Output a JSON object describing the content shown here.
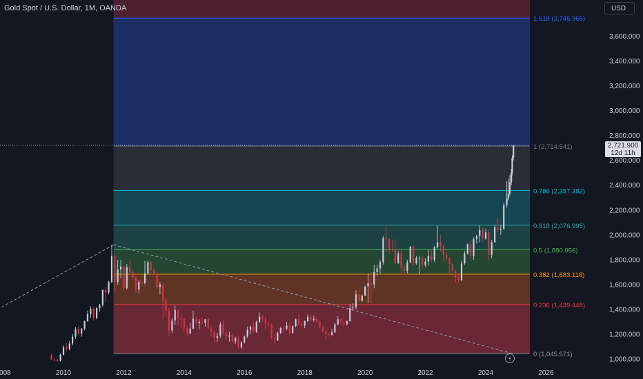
{
  "header": {
    "symbol_title": "Gold Spot / U.S. Dollar, 1M, OANDA",
    "currency_button": "USD"
  },
  "last_price": {
    "value": "2,721.900",
    "countdown": "12d 11h"
  },
  "colors": {
    "background": "#131722",
    "bull_candle": "#c8ccd6",
    "bear_candle": "#d0364a",
    "text": "#d1d4dc"
  },
  "chart_data": {
    "type": "candlestick",
    "symbol": "XAUUSD",
    "interval": "1M",
    "y_axis": {
      "ticks": [
        1000,
        1200,
        1400,
        1600,
        1800,
        2000,
        2200,
        2400,
        2600,
        2800,
        3000,
        3200,
        3400,
        3600
      ],
      "tick_labels": [
        "1,000.000",
        "1,200.000",
        "1,400.000",
        "1,600.000",
        "1,800.000",
        "2,000.000",
        "2,200.000",
        "2,400.000",
        "2,600.000",
        "2,800.000",
        "3,000.000",
        "3,200.000",
        "3,400.000",
        "3,600.000"
      ],
      "range": [
        990,
        3800
      ]
    },
    "x_axis": {
      "ticks": [
        2008,
        2010,
        2012,
        2014,
        2016,
        2018,
        2020,
        2022,
        2024,
        2026
      ],
      "tick_labels": [
        "2008",
        "2010",
        "2012",
        "2014",
        "2016",
        "2018",
        "2020",
        "2022",
        "2024",
        "2026"
      ],
      "range": [
        2007.8,
        2029.1
      ]
    },
    "fib_retracement": {
      "from": {
        "date": 2011.66,
        "price": 1045.571
      },
      "to": {
        "date": 2024.85,
        "price": 2714.541
      },
      "levels": [
        {
          "ratio": 0,
          "price": 1045.571,
          "label": "0 (1,045.571)",
          "color": "#9598a1",
          "fill": "#7a2a3a"
        },
        {
          "ratio": 0.236,
          "price": 1439.448,
          "label": "0.236 (1,439.448)",
          "color": "#f23645",
          "fill": "#6f3a26"
        },
        {
          "ratio": 0.382,
          "price": 1683.118,
          "label": "0.382 (1,683.118)",
          "color": "#ff9800",
          "fill": "#284f35"
        },
        {
          "ratio": 0.5,
          "price": 1880.056,
          "label": "0.5 (1,880.056)",
          "color": "#4caf50",
          "fill": "#1f4a4a"
        },
        {
          "ratio": 0.618,
          "price": 2076.995,
          "label": "0.618 (2,076.995)",
          "color": "#26a69a",
          "fill": "#154f5c"
        },
        {
          "ratio": 0.786,
          "price": 2357.382,
          "label": "0.786 (2,357.382)",
          "color": "#00bcd4",
          "fill": "#2d313c"
        },
        {
          "ratio": 1,
          "price": 2714.541,
          "label": "1 (2,714.541)",
          "color": "#787b86",
          "fill": "#1e3370"
        },
        {
          "ratio": 1.618,
          "price": 3745.965,
          "label": "1.618 (3,745.965)",
          "color": "#2962ff",
          "fill": "#5a2232"
        }
      ]
    },
    "trend_lines": [
      {
        "from": {
          "date": 2007.8,
          "price": 1398
        },
        "to": {
          "date": 2011.66,
          "price": 1920
        }
      },
      {
        "from": {
          "date": 2011.66,
          "price": 1920
        },
        "to": {
          "date": 2024.85,
          "price": 1045.571
        }
      }
    ],
    "ohlc_monthly_approx": [
      [
        2009.6,
        1030,
        1040,
        1000,
        995
      ],
      [
        2009.7,
        995,
        1005,
        985,
        990
      ],
      [
        2009.8,
        990,
        1000,
        980,
        985
      ],
      [
        2009.9,
        985,
        1045,
        980,
        1035
      ],
      [
        2010.0,
        1035,
        1110,
        1030,
        1095
      ],
      [
        2010.1,
        1095,
        1130,
        1060,
        1080
      ],
      [
        2010.2,
        1080,
        1145,
        1070,
        1125
      ],
      [
        2010.3,
        1125,
        1200,
        1110,
        1180
      ],
      [
        2010.4,
        1180,
        1255,
        1160,
        1240
      ],
      [
        2010.5,
        1240,
        1265,
        1190,
        1205
      ],
      [
        2010.6,
        1205,
        1250,
        1180,
        1245
      ],
      [
        2010.7,
        1245,
        1310,
        1230,
        1305
      ],
      [
        2010.8,
        1305,
        1390,
        1300,
        1360
      ],
      [
        2010.9,
        1360,
        1425,
        1330,
        1405
      ],
      [
        2011.0,
        1405,
        1420,
        1310,
        1330
      ],
      [
        2011.1,
        1330,
        1420,
        1320,
        1410
      ],
      [
        2011.2,
        1410,
        1445,
        1380,
        1435
      ],
      [
        2011.3,
        1435,
        1560,
        1420,
        1555
      ],
      [
        2011.4,
        1555,
        1580,
        1460,
        1535
      ],
      [
        2011.5,
        1535,
        1630,
        1520,
        1620
      ],
      [
        2011.6,
        1620,
        1920,
        1610,
        1830
      ],
      [
        2011.7,
        1830,
        1850,
        1550,
        1620
      ],
      [
        2011.8,
        1620,
        1800,
        1600,
        1720
      ],
      [
        2011.9,
        1720,
        1800,
        1650,
        1745
      ],
      [
        2012.0,
        1745,
        1750,
        1560,
        1570
      ],
      [
        2012.1,
        1570,
        1765,
        1560,
        1740
      ],
      [
        2012.2,
        1740,
        1790,
        1680,
        1700
      ],
      [
        2012.3,
        1700,
        1720,
        1640,
        1660
      ],
      [
        2012.4,
        1660,
        1670,
        1530,
        1560
      ],
      [
        2012.5,
        1560,
        1640,
        1530,
        1620
      ],
      [
        2012.6,
        1620,
        1640,
        1580,
        1610
      ],
      [
        2012.7,
        1610,
        1790,
        1600,
        1690
      ],
      [
        2012.8,
        1690,
        1795,
        1680,
        1780
      ],
      [
        2012.9,
        1780,
        1790,
        1690,
        1715
      ],
      [
        2013.0,
        1715,
        1740,
        1680,
        1690
      ],
      [
        2013.1,
        1690,
        1700,
        1560,
        1580
      ],
      [
        2013.2,
        1580,
        1620,
        1520,
        1600
      ],
      [
        2013.3,
        1600,
        1610,
        1320,
        1470
      ],
      [
        2013.4,
        1470,
        1490,
        1340,
        1390
      ],
      [
        2013.5,
        1390,
        1410,
        1180,
        1230
      ],
      [
        2013.6,
        1230,
        1330,
        1210,
        1310
      ],
      [
        2013.7,
        1310,
        1430,
        1275,
        1395
      ],
      [
        2013.8,
        1395,
        1400,
        1270,
        1325
      ],
      [
        2013.9,
        1325,
        1365,
        1250,
        1320
      ],
      [
        2014.0,
        1320,
        1330,
        1220,
        1250
      ],
      [
        2014.1,
        1250,
        1270,
        1180,
        1205
      ],
      [
        2014.2,
        1205,
        1290,
        1200,
        1245
      ],
      [
        2014.3,
        1245,
        1390,
        1240,
        1325
      ],
      [
        2014.4,
        1325,
        1340,
        1280,
        1290
      ],
      [
        2014.5,
        1290,
        1320,
        1240,
        1300
      ],
      [
        2014.6,
        1300,
        1330,
        1280,
        1290
      ],
      [
        2014.7,
        1290,
        1320,
        1260,
        1320
      ],
      [
        2014.8,
        1320,
        1325,
        1240,
        1250
      ],
      [
        2014.9,
        1250,
        1260,
        1180,
        1215
      ],
      [
        2015.0,
        1215,
        1230,
        1130,
        1170
      ],
      [
        2015.1,
        1170,
        1210,
        1140,
        1185
      ],
      [
        2015.2,
        1185,
        1300,
        1170,
        1280
      ],
      [
        2015.3,
        1280,
        1310,
        1190,
        1210
      ],
      [
        2015.4,
        1210,
        1230,
        1150,
        1180
      ],
      [
        2015.5,
        1180,
        1220,
        1140,
        1190
      ],
      [
        2015.6,
        1190,
        1205,
        1130,
        1140
      ],
      [
        2015.7,
        1140,
        1180,
        1120,
        1170
      ],
      [
        2015.8,
        1170,
        1190,
        1080,
        1095
      ],
      [
        2015.9,
        1095,
        1140,
        1080,
        1135
      ],
      [
        2016.0,
        1135,
        1190,
        1125,
        1180
      ],
      [
        2016.1,
        1180,
        1260,
        1170,
        1235
      ],
      [
        2016.2,
        1235,
        1270,
        1200,
        1260
      ],
      [
        2016.3,
        1260,
        1300,
        1210,
        1220
      ],
      [
        2016.4,
        1220,
        1310,
        1210,
        1300
      ],
      [
        2016.5,
        1300,
        1375,
        1290,
        1340
      ],
      [
        2016.6,
        1340,
        1360,
        1300,
        1320
      ],
      [
        2016.7,
        1320,
        1340,
        1240,
        1280
      ],
      [
        2016.8,
        1280,
        1305,
        1255,
        1275
      ],
      [
        2016.9,
        1275,
        1290,
        1160,
        1170
      ],
      [
        2017.0,
        1170,
        1200,
        1125,
        1150
      ],
      [
        2017.1,
        1150,
        1220,
        1145,
        1210
      ],
      [
        2017.2,
        1210,
        1260,
        1200,
        1250
      ],
      [
        2017.3,
        1250,
        1265,
        1210,
        1245
      ],
      [
        2017.4,
        1245,
        1300,
        1230,
        1270
      ],
      [
        2017.5,
        1270,
        1295,
        1200,
        1210
      ],
      [
        2017.6,
        1210,
        1270,
        1205,
        1265
      ],
      [
        2017.7,
        1265,
        1325,
        1255,
        1320
      ],
      [
        2017.8,
        1320,
        1360,
        1270,
        1280
      ],
      [
        2017.9,
        1280,
        1290,
        1240,
        1270
      ],
      [
        2018.0,
        1270,
        1310,
        1250,
        1305
      ],
      [
        2018.1,
        1305,
        1360,
        1300,
        1340
      ],
      [
        2018.2,
        1340,
        1365,
        1300,
        1315
      ],
      [
        2018.3,
        1315,
        1350,
        1300,
        1325
      ],
      [
        2018.4,
        1325,
        1340,
        1280,
        1300
      ],
      [
        2018.5,
        1300,
        1310,
        1250,
        1255
      ],
      [
        2018.6,
        1255,
        1270,
        1210,
        1225
      ],
      [
        2018.7,
        1225,
        1240,
        1160,
        1200
      ],
      [
        2018.8,
        1200,
        1215,
        1180,
        1195
      ],
      [
        2018.9,
        1195,
        1240,
        1185,
        1215
      ],
      [
        2019.0,
        1215,
        1290,
        1210,
        1280
      ],
      [
        2019.1,
        1280,
        1345,
        1270,
        1320
      ],
      [
        2019.2,
        1320,
        1330,
        1280,
        1295
      ],
      [
        2019.3,
        1295,
        1325,
        1265,
        1280
      ],
      [
        2019.4,
        1280,
        1310,
        1270,
        1305
      ],
      [
        2019.5,
        1305,
        1440,
        1300,
        1410
      ],
      [
        2019.6,
        1410,
        1450,
        1390,
        1415
      ],
      [
        2019.7,
        1415,
        1555,
        1400,
        1520
      ],
      [
        2019.8,
        1520,
        1560,
        1460,
        1470
      ],
      [
        2019.9,
        1470,
        1520,
        1460,
        1510
      ],
      [
        2020.0,
        1510,
        1590,
        1510,
        1585
      ],
      [
        2020.1,
        1585,
        1690,
        1450,
        1610
      ],
      [
        2020.2,
        1610,
        1700,
        1450,
        1600
      ],
      [
        2020.3,
        1600,
        1760,
        1570,
        1700
      ],
      [
        2020.4,
        1700,
        1760,
        1670,
        1730
      ],
      [
        2020.5,
        1730,
        1800,
        1690,
        1780
      ],
      [
        2020.6,
        1780,
        1990,
        1760,
        1975
      ],
      [
        2020.7,
        1975,
        2075,
        1860,
        1965
      ],
      [
        2020.8,
        1965,
        1975,
        1850,
        1885
      ],
      [
        2020.9,
        1885,
        1960,
        1860,
        1880
      ],
      [
        2021.0,
        1880,
        1965,
        1765,
        1775
      ],
      [
        2021.1,
        1775,
        1870,
        1765,
        1850
      ],
      [
        2021.2,
        1850,
        1875,
        1680,
        1735
      ],
      [
        2021.3,
        1735,
        1760,
        1680,
        1710
      ],
      [
        2021.4,
        1710,
        1800,
        1690,
        1780
      ],
      [
        2021.5,
        1780,
        1910,
        1770,
        1905
      ],
      [
        2021.6,
        1905,
        1915,
        1750,
        1770
      ],
      [
        2021.7,
        1770,
        1830,
        1760,
        1815
      ],
      [
        2021.8,
        1815,
        1830,
        1680,
        1815
      ],
      [
        2021.9,
        1815,
        1830,
        1720,
        1755
      ],
      [
        2022.0,
        1755,
        1810,
        1740,
        1785
      ],
      [
        2022.1,
        1785,
        1880,
        1750,
        1830
      ],
      [
        2022.2,
        1830,
        1880,
        1780,
        1800
      ],
      [
        2022.3,
        1800,
        1910,
        1780,
        1900
      ],
      [
        2022.4,
        1900,
        2075,
        1890,
        1940
      ],
      [
        2022.5,
        1940,
        2000,
        1870,
        1910
      ],
      [
        2022.6,
        1910,
        1920,
        1780,
        1840
      ],
      [
        2022.7,
        1840,
        1860,
        1785,
        1810
      ],
      [
        2022.8,
        1810,
        1820,
        1690,
        1765
      ],
      [
        2022.9,
        1765,
        1780,
        1680,
        1710
      ],
      [
        2023.0,
        1710,
        1720,
        1615,
        1660
      ],
      [
        2023.1,
        1660,
        1690,
        1620,
        1635
      ],
      [
        2023.2,
        1635,
        1790,
        1630,
        1770
      ],
      [
        2023.3,
        1770,
        1870,
        1760,
        1850
      ],
      [
        2023.4,
        1850,
        1930,
        1840,
        1925
      ],
      [
        2023.5,
        1925,
        1960,
        1810,
        1830
      ],
      [
        2023.6,
        1830,
        1980,
        1800,
        1965
      ],
      [
        2023.7,
        1965,
        2000,
        1930,
        1990
      ],
      [
        2023.8,
        1990,
        2075,
        1940,
        2040
      ],
      [
        2023.9,
        2040,
        2060,
        1950,
        1970
      ],
      [
        2024.0,
        1970,
        2050,
        1960,
        2020
      ],
      [
        2024.1,
        2020,
        2045,
        1800,
        1840
      ],
      [
        2024.2,
        1840,
        1960,
        1810,
        1940
      ],
      [
        2024.3,
        1940,
        2080,
        1935,
        2060
      ],
      [
        2024.4,
        2060,
        2140,
        2020,
        2040
      ],
      [
        2024.5,
        2040,
        2080,
        2000,
        2050
      ],
      [
        2024.6,
        2050,
        2260,
        2040,
        2240
      ],
      [
        2024.7,
        2240,
        2430,
        2220,
        2290
      ],
      [
        2024.75,
        2290,
        2450,
        2280,
        2330
      ],
      [
        2024.8,
        2330,
        2480,
        2310,
        2425
      ],
      [
        2024.85,
        2425,
        2530,
        2400,
        2500
      ],
      [
        2024.88,
        2500,
        2640,
        2480,
        2620
      ],
      [
        2024.92,
        2620,
        2725,
        2600,
        2721.9
      ]
    ]
  }
}
